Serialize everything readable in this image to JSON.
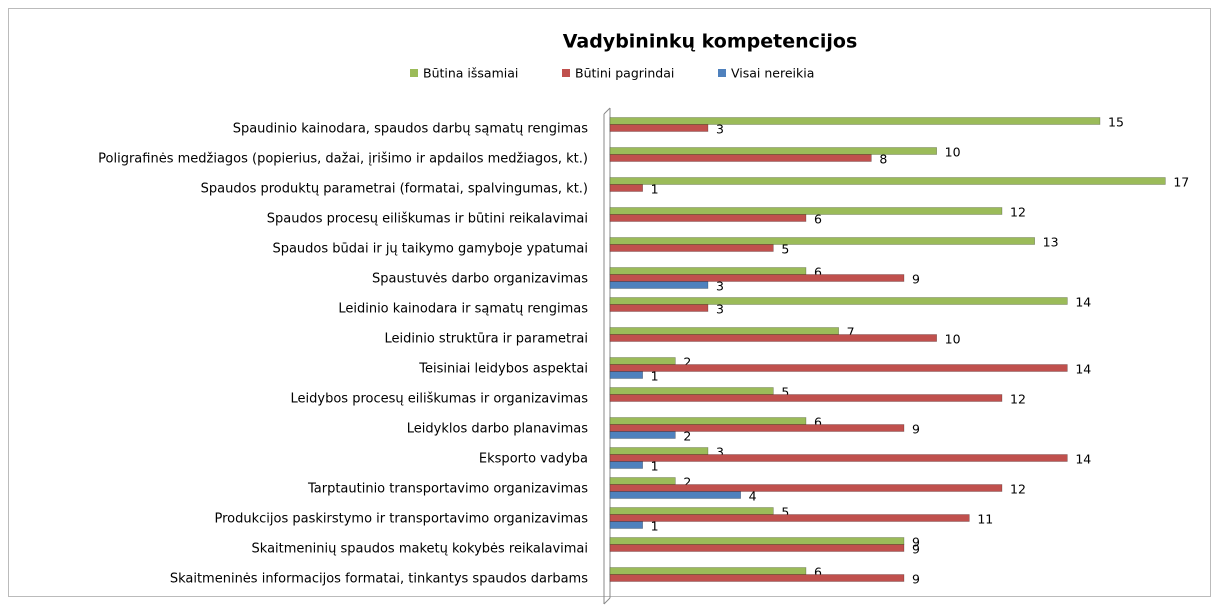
{
  "chart_data": {
    "type": "bar",
    "orientation": "horizontal",
    "title": "Vadybininkų kompetencijos",
    "categories": [
      "Spaudinio kainodara, spaudos darbų sąmatų rengimas",
      "Poligrafinės medžiagos (popierius, dažai, įrišimo ir apdailos medžiagos, kt.)",
      "Spaudos produktų parametrai (formatai, spalvingumas, kt.)",
      "Spaudos procesų eiliškumas ir būtini reikalavimai",
      "Spaudos būdai ir jų taikymo gamyboje ypatumai",
      "Spaustuvės darbo organizavimas",
      "Leidinio kainodara ir sąmatų rengimas",
      "Leidinio struktūra ir parametrai",
      "Teisiniai leidybos aspektai",
      "Leidybos procesų eiliškumas ir organizavimas",
      "Leidyklos darbo planavimas",
      "Eksporto vadyba",
      "Tarptautinio transportavimo organizavimas",
      "Produkcijos paskirstymo ir transportavimo organizavimas",
      "Skaitmeninių spaudos maketų kokybės reikalavimai",
      "Skaitmeninės informacijos formatai, tinkantys spaudos darbams"
    ],
    "series": [
      {
        "name": "Būtina išsamiai",
        "color": "#9bbb59",
        "values": [
          15,
          10,
          17,
          12,
          13,
          6,
          14,
          7,
          2,
          5,
          6,
          3,
          2,
          5,
          9,
          6
        ]
      },
      {
        "name": "Būtini pagrindai",
        "color": "#c0504d",
        "values": [
          3,
          8,
          1,
          6,
          5,
          9,
          3,
          10,
          14,
          12,
          9,
          14,
          12,
          11,
          9,
          9
        ]
      },
      {
        "name": "Visai nereikia",
        "color": "#4f81bd",
        "values": [
          null,
          null,
          null,
          null,
          null,
          3,
          null,
          null,
          1,
          null,
          2,
          1,
          4,
          1,
          null,
          null
        ]
      }
    ],
    "xlim": [
      0,
      18
    ],
    "legend": "top"
  }
}
